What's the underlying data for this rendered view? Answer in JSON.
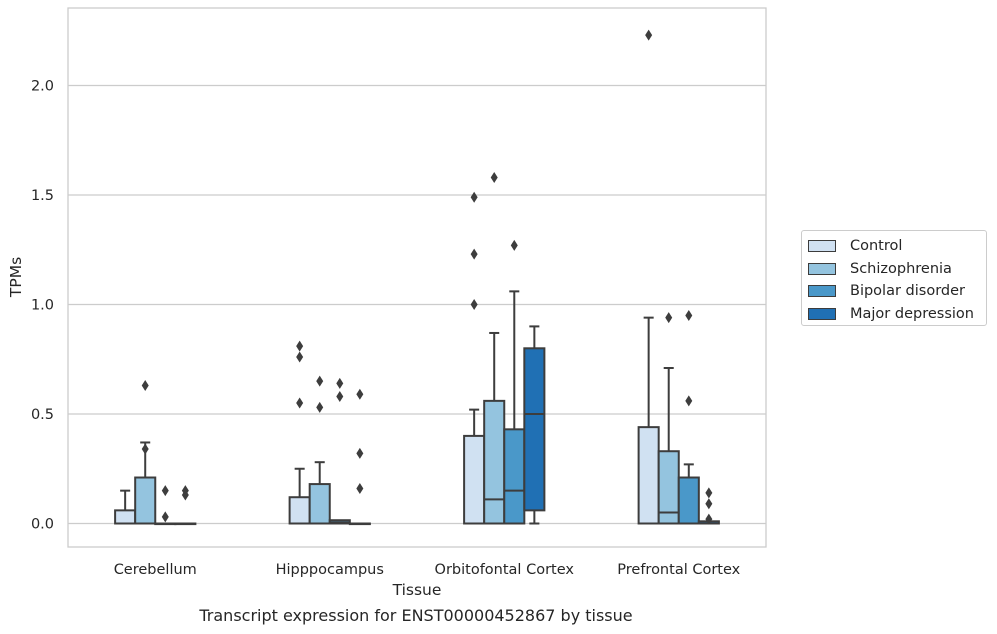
{
  "caption": "Transcript expression for ENST00000452867 by tissue",
  "chart_data": {
    "type": "boxplot",
    "title": "",
    "xlabel": "Tissue",
    "ylabel": "TPMs",
    "ylim": [
      -0.11,
      2.35
    ],
    "yticks": [
      "0.0",
      "0.5",
      "1.0",
      "1.5",
      "2.0"
    ],
    "ytick_values": [
      0.0,
      0.5,
      1.0,
      1.5,
      2.0
    ],
    "grid": "horizontal",
    "legend_position": "right",
    "categories": [
      "Cerebellum",
      "Hipppocampus",
      "Orbitofontal Cortex",
      "Prefrontal Cortex"
    ],
    "series": [
      {
        "name": "Control",
        "color": "#d0e1f2",
        "boxes": [
          {
            "q1": 0.0,
            "median": 0.0,
            "q3": 0.06,
            "whisker_low": 0.0,
            "whisker_high": 0.15,
            "outliers": []
          },
          {
            "q1": 0.0,
            "median": 0.0,
            "q3": 0.12,
            "whisker_low": 0.0,
            "whisker_high": 0.25,
            "outliers": [
              0.55,
              0.76,
              0.81
            ]
          },
          {
            "q1": 0.0,
            "median": 0.0,
            "q3": 0.4,
            "whisker_low": 0.0,
            "whisker_high": 0.52,
            "outliers": [
              1.0,
              1.23,
              1.49
            ]
          },
          {
            "q1": 0.0,
            "median": 0.0,
            "q3": 0.44,
            "whisker_low": 0.0,
            "whisker_high": 0.94,
            "outliers": [
              2.23
            ]
          }
        ]
      },
      {
        "name": "Schizophrenia",
        "color": "#94c4df",
        "boxes": [
          {
            "q1": 0.0,
            "median": 0.0,
            "q3": 0.21,
            "whisker_low": 0.0,
            "whisker_high": 0.37,
            "outliers": [
              0.34,
              0.63
            ]
          },
          {
            "q1": 0.0,
            "median": 0.0,
            "q3": 0.18,
            "whisker_low": 0.0,
            "whisker_high": 0.28,
            "outliers": [
              0.53,
              0.65
            ]
          },
          {
            "q1": 0.0,
            "median": 0.11,
            "q3": 0.56,
            "whisker_low": 0.0,
            "whisker_high": 0.87,
            "outliers": [
              1.58
            ]
          },
          {
            "q1": 0.0,
            "median": 0.05,
            "q3": 0.33,
            "whisker_low": 0.0,
            "whisker_high": 0.71,
            "outliers": [
              0.94
            ]
          }
        ]
      },
      {
        "name": "Bipolar disorder",
        "color": "#4a98c9",
        "boxes": [
          {
            "q1": 0.0,
            "median": 0.0,
            "q3": 0.0,
            "whisker_low": 0.0,
            "whisker_high": 0.0,
            "outliers": [
              0.03,
              0.15
            ]
          },
          {
            "q1": 0.0,
            "median": 0.005,
            "q3": 0.015,
            "whisker_low": 0.0,
            "whisker_high": 0.015,
            "outliers": [
              0.58,
              0.64
            ]
          },
          {
            "q1": 0.0,
            "median": 0.15,
            "q3": 0.43,
            "whisker_low": 0.0,
            "whisker_high": 1.06,
            "outliers": [
              1.27
            ]
          },
          {
            "q1": 0.0,
            "median": 0.0,
            "q3": 0.21,
            "whisker_low": 0.0,
            "whisker_high": 0.27,
            "outliers": [
              0.56,
              0.95
            ]
          }
        ]
      },
      {
        "name": "Major depression",
        "color": "#2070b4",
        "boxes": [
          {
            "q1": 0.0,
            "median": 0.0,
            "q3": 0.0,
            "whisker_low": 0.0,
            "whisker_high": 0.0,
            "outliers": [
              0.13,
              0.15
            ]
          },
          {
            "q1": 0.0,
            "median": 0.0,
            "q3": 0.0,
            "whisker_low": 0.0,
            "whisker_high": 0.0,
            "outliers": [
              0.16,
              0.32,
              0.59
            ]
          },
          {
            "q1": 0.06,
            "median": 0.5,
            "q3": 0.8,
            "whisker_low": 0.0,
            "whisker_high": 0.9,
            "outliers": []
          },
          {
            "q1": 0.0,
            "median": 0.0,
            "q3": 0.01,
            "whisker_low": 0.0,
            "whisker_high": 0.01,
            "outliers": [
              0.02,
              0.09,
              0.14
            ]
          }
        ]
      }
    ]
  }
}
